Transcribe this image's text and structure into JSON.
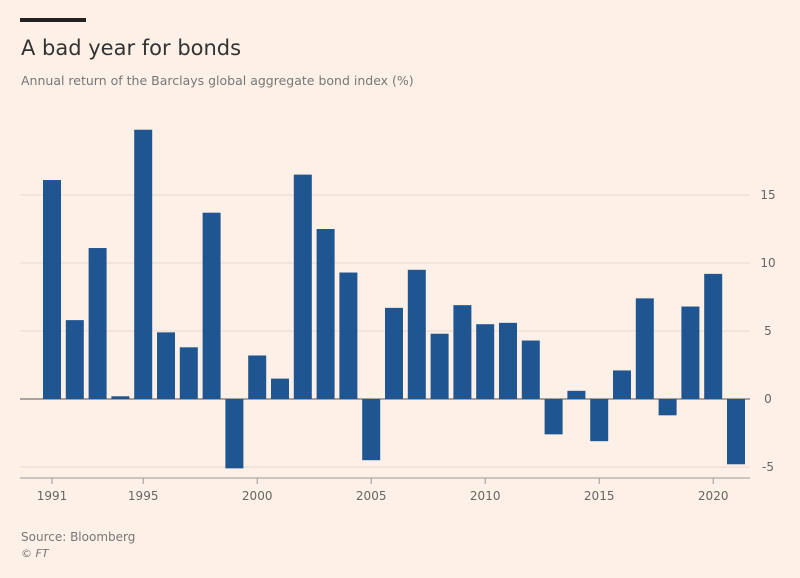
{
  "title": "A bad year for bonds",
  "subtitle": "Annual return of the Barclays global aggregate bond index (%)",
  "source": "Source: Bloomberg",
  "credit": "© FT",
  "colors": {
    "bar": "#1f5591",
    "grid": "#e6d9cf",
    "background": "#fdf0e6"
  },
  "chart_data": {
    "type": "bar",
    "title": "A bad year for bonds",
    "subtitle": "Annual return of the Barclays global aggregate bond index (%)",
    "xlabel": "",
    "ylabel": "%",
    "ylim": [
      -5,
      20
    ],
    "yticks": [
      -5,
      0,
      5,
      10,
      15
    ],
    "xticks": [
      1991,
      1995,
      2000,
      2005,
      2010,
      2015,
      2020
    ],
    "categories": [
      1991,
      1992,
      1993,
      1994,
      1995,
      1996,
      1997,
      1998,
      1999,
      2000,
      2001,
      2002,
      2003,
      2004,
      2005,
      2006,
      2007,
      2008,
      2009,
      2010,
      2011,
      2012,
      2013,
      2014,
      2015,
      2016,
      2017,
      2018,
      2019,
      2020,
      2021
    ],
    "values": [
      16.1,
      5.8,
      11.1,
      0.2,
      19.8,
      4.9,
      3.8,
      13.7,
      -5.1,
      3.2,
      1.5,
      16.5,
      12.5,
      9.3,
      -4.5,
      6.7,
      9.5,
      4.8,
      6.9,
      5.5,
      5.6,
      4.3,
      -2.6,
      0.6,
      -3.1,
      2.1,
      7.4,
      -1.2,
      6.8,
      9.2,
      -4.8
    ],
    "grid": true
  }
}
